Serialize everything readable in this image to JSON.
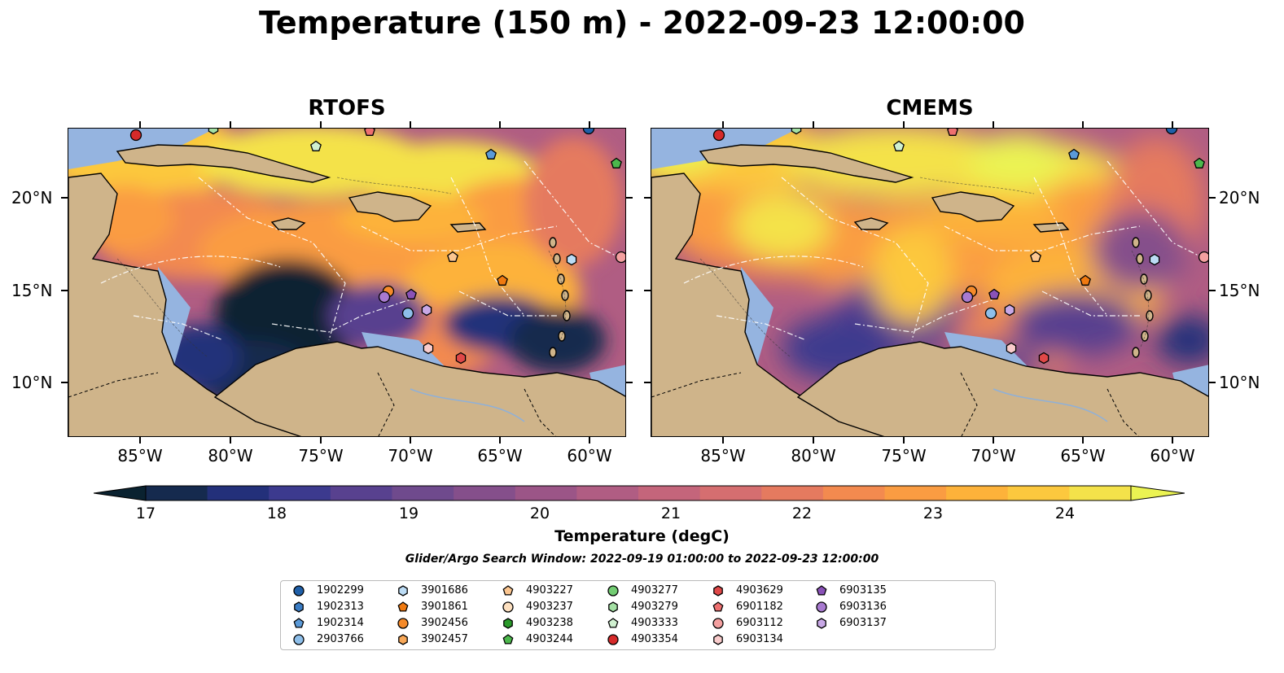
{
  "title": "Temperature (150 m) - 2022-09-23 12:00:00",
  "panels": [
    {
      "title": "RTOFS"
    },
    {
      "title": "CMEMS"
    }
  ],
  "x_tick_labels": [
    "85°W",
    "80°W",
    "75°W",
    "70°W",
    "65°W",
    "60°W"
  ],
  "y_tick_labels": [
    "20°N",
    "15°N",
    "10°N"
  ],
  "colorbar": {
    "label": "Temperature (degC)",
    "ticks": [
      "17",
      "18",
      "19",
      "20",
      "21",
      "22",
      "23",
      "24"
    ],
    "colors": [
      "#0a2230",
      "#152a4e",
      "#23307a",
      "#3c3a8e",
      "#58418f",
      "#6f4a8d",
      "#854f8b",
      "#9b5587",
      "#b05d83",
      "#c4657b",
      "#d56e70",
      "#e57a5f",
      "#f38a4f",
      "#fa9c42",
      "#fdb23a",
      "#fcc83e",
      "#f4e24a",
      "#ebf352"
    ]
  },
  "search_window": "Glider/Argo Search Window: 2022-09-19 01:00:00 to 2022-09-23 12:00:00",
  "legend": {
    "items": [
      {
        "label": "1902299",
        "shape": "circle",
        "color": "#1f5fa8"
      },
      {
        "label": "1902313",
        "shape": "hexagon",
        "color": "#3a7cc4"
      },
      {
        "label": "1902314",
        "shape": "pentagon",
        "color": "#5b9ad8"
      },
      {
        "label": "2903766",
        "shape": "circle",
        "color": "#8ebfea"
      },
      {
        "label": "3901686",
        "shape": "hexagon",
        "color": "#bcdcf5"
      },
      {
        "label": "3901861",
        "shape": "pentagon",
        "color": "#f07a10"
      },
      {
        "label": "3902456",
        "shape": "circle",
        "color": "#f58a2a"
      },
      {
        "label": "3902457",
        "shape": "hexagon",
        "color": "#f8a858"
      },
      {
        "label": "4903227",
        "shape": "pentagon",
        "color": "#fcc690"
      },
      {
        "label": "4903237",
        "shape": "circle",
        "color": "#fde0c0"
      },
      {
        "label": "4903238",
        "shape": "hexagon",
        "color": "#2a9a2a"
      },
      {
        "label": "4903244",
        "shape": "pentagon",
        "color": "#4cb84c"
      },
      {
        "label": "4903277",
        "shape": "circle",
        "color": "#72cc72"
      },
      {
        "label": "4903279",
        "shape": "hexagon",
        "color": "#a4e0a4"
      },
      {
        "label": "4903333",
        "shape": "pentagon",
        "color": "#d0f0d0"
      },
      {
        "label": "4903354",
        "shape": "circle",
        "color": "#d62a2a"
      },
      {
        "label": "4903629",
        "shape": "hexagon",
        "color": "#e04848"
      },
      {
        "label": "6901182",
        "shape": "pentagon",
        "color": "#ee7070"
      },
      {
        "label": "6903112",
        "shape": "circle",
        "color": "#f4a0a0"
      },
      {
        "label": "6903134",
        "shape": "hexagon",
        "color": "#f9cccc"
      },
      {
        "label": "6903135",
        "shape": "pentagon",
        "color": "#8a52b8"
      },
      {
        "label": "6903136",
        "shape": "circle",
        "color": "#a87ad0"
      },
      {
        "label": "6903137",
        "shape": "hexagon",
        "color": "#c8a8e6"
      }
    ]
  }
}
